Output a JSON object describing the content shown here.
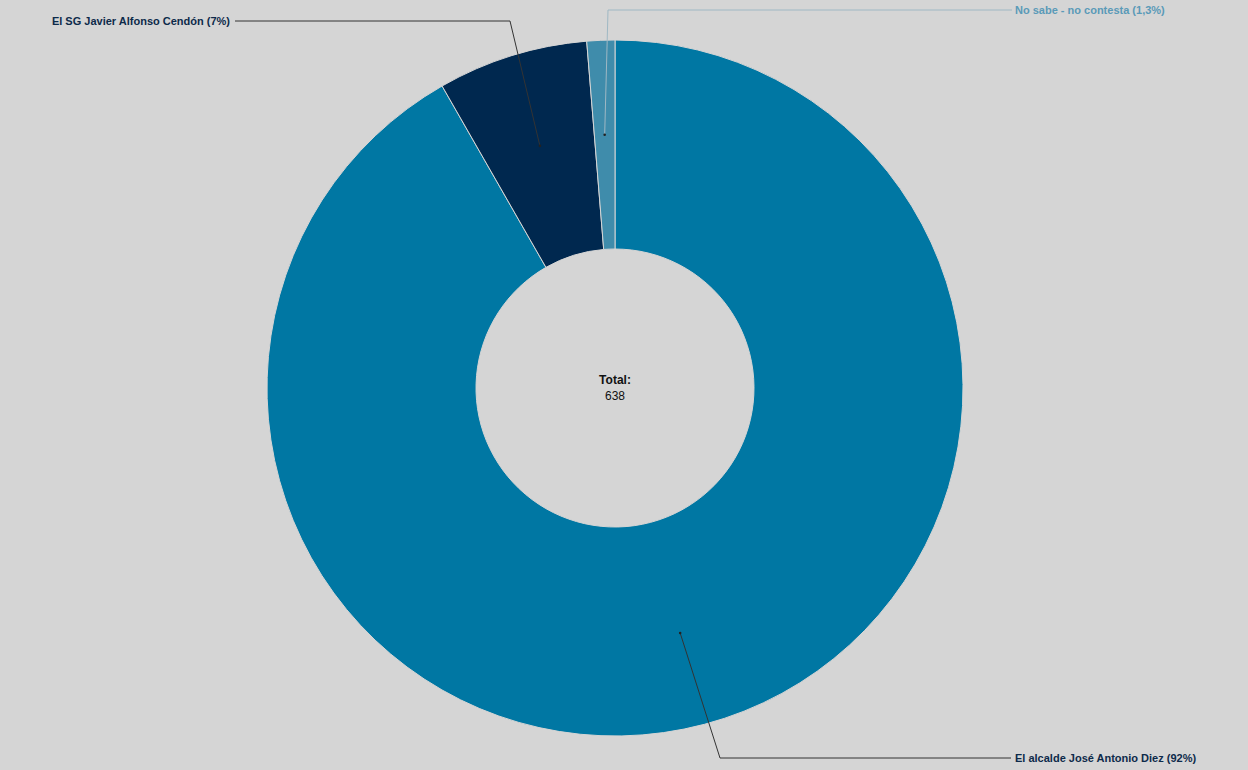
{
  "chart_data": {
    "type": "pie",
    "categories": [
      "El alcalde José Antonio Diez (92%)",
      "El SG Javier Alfonso Cendón (7%)",
      "No sabe - no contesta (1,3%)"
    ],
    "values": [
      92,
      7,
      1.3
    ],
    "colors": [
      "#0077a3",
      "#00284f",
      "#3f8cab"
    ],
    "center_text": {
      "label": "Total:",
      "value": 638
    }
  }
}
